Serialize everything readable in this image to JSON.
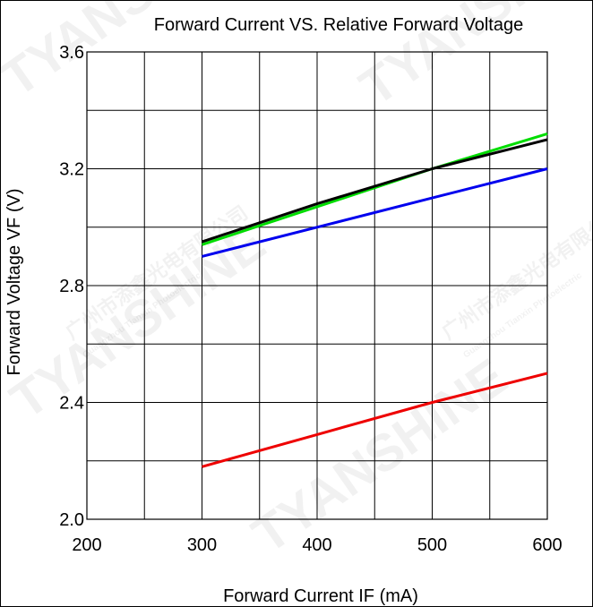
{
  "chart_data": {
    "type": "line",
    "title": "Forward Current VS.  Relative Forward Voltage",
    "xlabel": "Forward Current IF  (mA)",
    "ylabel": "Forward  Voltage  VF  (V)",
    "xlim": [
      200,
      600
    ],
    "ylim": [
      2.0,
      3.6
    ],
    "x_ticks": [
      "200",
      "300",
      "400",
      "500",
      "600"
    ],
    "y_ticks": [
      "2.0",
      "2.4",
      "2.8",
      "3.2",
      "3.6"
    ],
    "grid": true,
    "series": [
      {
        "color": "#00dd00",
        "x": [
          300,
          400,
          500,
          600
        ],
        "y": [
          2.94,
          3.07,
          3.2,
          3.32
        ]
      },
      {
        "color": "#000000",
        "x": [
          300,
          400,
          500,
          600
        ],
        "y": [
          2.95,
          3.08,
          3.2,
          3.3
        ]
      },
      {
        "color": "#0000ee",
        "x": [
          300,
          400,
          500,
          600
        ],
        "y": [
          2.9,
          3.0,
          3.1,
          3.2
        ]
      },
      {
        "color": "#ee0000",
        "x": [
          300,
          400,
          500,
          600
        ],
        "y": [
          2.18,
          2.29,
          2.4,
          2.5
        ]
      }
    ]
  },
  "watermarks": [
    "TYANSHINE",
    "TYANSHINE",
    "TYANSHINE",
    "TYANSHINE",
    "广州市添鑫光电有限公司",
    "广州市添鑫光电有限公司",
    "Guangzhou Tianxin Photoelectric",
    "Guangzhou Tianxin Photoelectric"
  ]
}
